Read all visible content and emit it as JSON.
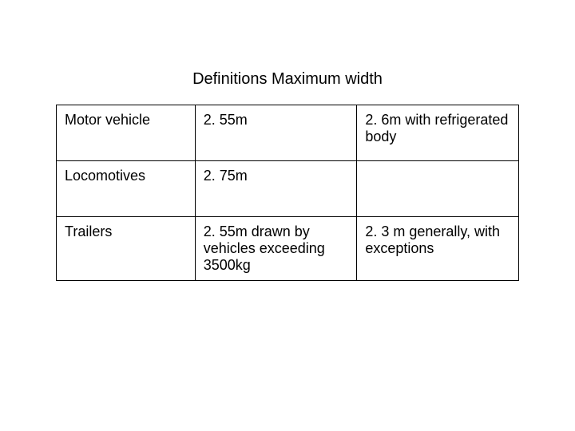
{
  "title": "Definitions Maximum width",
  "table": {
    "background_color": "#ffffff",
    "border_color": "#000000",
    "text_color": "#000000",
    "font_size": 18,
    "title_font_size": 20,
    "columns": 3,
    "column_widths": [
      "30%",
      "35%",
      "35%"
    ],
    "rows": [
      {
        "c1": "Motor vehicle",
        "c2": "2. 55m",
        "c3": "2. 6m with refrigerated body"
      },
      {
        "c1": "Locomotives",
        "c2": "2. 75m",
        "c3": ""
      },
      {
        "c1": "Trailers",
        "c2": "2. 55m drawn by vehicles exceeding 3500kg",
        "c3": "2. 3 m generally, with exceptions"
      }
    ]
  }
}
